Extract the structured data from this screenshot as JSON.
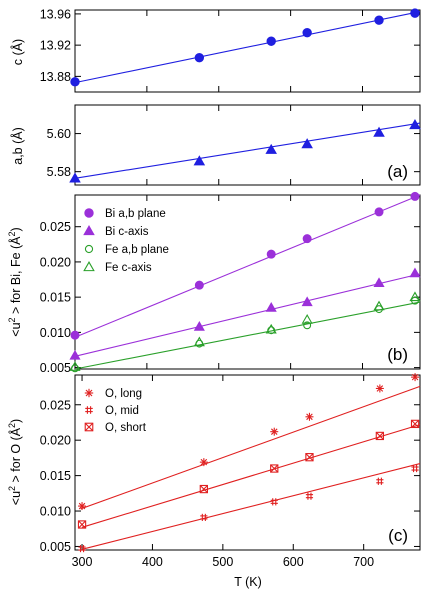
{
  "chart_data": [
    {
      "type": "scatter",
      "panel": "c-lattice",
      "ylabel": "c (Å)",
      "xlim": [
        300,
        780
      ],
      "ylim": [
        13.86,
        13.965
      ],
      "yticks": [
        "13.88",
        "13.92",
        "13.96"
      ],
      "series": [
        {
          "color": "#1f1fe0",
          "marker": "circle-filled",
          "x": [
            300,
            473,
            573,
            623,
            723,
            773
          ],
          "y": [
            13.873,
            13.904,
            13.925,
            13.936,
            13.952,
            13.961
          ],
          "fit": [
            [
              300,
              13.872
            ],
            [
              780,
              13.963
            ]
          ]
        }
      ]
    },
    {
      "type": "scatter",
      "panel": "ab-lattice",
      "ylabel": "a,b (Å)",
      "panel_label": "(a)",
      "xlim": [
        300,
        780
      ],
      "ylim": [
        5.573,
        5.615
      ],
      "yticks": [
        "5.58",
        "5.60"
      ],
      "series": [
        {
          "color": "#1f1fe0",
          "marker": "triangle-filled",
          "x": [
            300,
            473,
            573,
            623,
            723,
            773
          ],
          "y": [
            5.5765,
            5.5855,
            5.5915,
            5.5945,
            5.6005,
            5.6045
          ],
          "fit": [
            [
              300,
              5.5765
            ],
            [
              780,
              5.6055
            ]
          ]
        }
      ]
    },
    {
      "type": "scatter",
      "panel": "b",
      "ylabel": "<u2 > for Bi, Fe (Å2)",
      "panel_label": "(b)",
      "xlim": [
        300,
        780
      ],
      "ylim": [
        0.0048,
        0.0295
      ],
      "yticks": [
        "0.005",
        "0.010",
        "0.015",
        "0.020",
        "0.025"
      ],
      "legend": [
        {
          "label": "Bi a,b plane",
          "marker": "circle-filled",
          "color": "#9b30d9"
        },
        {
          "label": "Bi c-axis",
          "marker": "triangle-filled",
          "color": "#9b30d9"
        },
        {
          "label": "Fe a,b plane",
          "marker": "circle-open",
          "color": "#2aa02a"
        },
        {
          "label": "Fe c-axis",
          "marker": "triangle-open",
          "color": "#2aa02a"
        }
      ],
      "series": [
        {
          "name": "Bi a,b plane",
          "color": "#9b30d9",
          "marker": "circle-filled",
          "x": [
            300,
            473,
            573,
            623,
            723,
            773
          ],
          "y": [
            0.0096,
            0.0167,
            0.0211,
            0.0233,
            0.0271,
            0.0293
          ],
          "fit": [
            [
              300,
              0.0093
            ],
            [
              780,
              0.0295
            ]
          ]
        },
        {
          "name": "Bi c-axis",
          "color": "#9b30d9",
          "marker": "triangle-filled",
          "x": [
            300,
            473,
            573,
            623,
            723,
            773
          ],
          "y": [
            0.0067,
            0.0108,
            0.0135,
            0.0143,
            0.017,
            0.0184
          ],
          "fit": [
            [
              300,
              0.0066
            ],
            [
              780,
              0.0183
            ]
          ]
        },
        {
          "name": "Fe a,b plane",
          "color": "#2aa02a",
          "marker": "circle-open",
          "x": [
            300,
            473,
            573,
            623,
            723,
            773
          ],
          "y": [
            0.0049,
            0.0084,
            0.0103,
            0.011,
            0.0133,
            0.0145
          ],
          "fit": [
            [
              300,
              0.0048
            ],
            [
              780,
              0.0143
            ]
          ]
        },
        {
          "name": "Fe c-axis",
          "color": "#2aa02a",
          "marker": "triangle-open",
          "x": [
            300,
            473,
            573,
            623,
            723,
            773
          ],
          "y": [
            0.0051,
            0.0086,
            0.0104,
            0.0118,
            0.0137,
            0.015
          ],
          "fit": null
        }
      ]
    },
    {
      "type": "scatter",
      "panel": "c",
      "ylabel": "<u2 > for O (Å2)",
      "panel_label": "(c)",
      "xlabel": "T (K)",
      "xlim": [
        290,
        780
      ],
      "ylim": [
        0.0045,
        0.0292
      ],
      "xticks": [
        "300",
        "400",
        "500",
        "600",
        "700"
      ],
      "yticks": [
        "0.005",
        "0.010",
        "0.015",
        "0.020",
        "0.025"
      ],
      "legend": [
        {
          "label": "O, long",
          "marker": "asterisk",
          "color": "#e02020"
        },
        {
          "label": "O, mid",
          "marker": "hash",
          "color": "#e02020"
        },
        {
          "label": "O, short",
          "marker": "boxed-x",
          "color": "#e02020"
        }
      ],
      "series": [
        {
          "name": "O, long",
          "color": "#e02020",
          "marker": "asterisk",
          "x": [
            300,
            473,
            573,
            623,
            723,
            773
          ],
          "y": [
            0.0107,
            0.0169,
            0.0212,
            0.0233,
            0.0273,
            0.0289
          ],
          "fit": [
            [
              298,
              0.0103
            ],
            [
              780,
              0.0276
            ]
          ]
        },
        {
          "name": "O, mid",
          "color": "#e02020",
          "marker": "hash",
          "x": [
            300,
            473,
            573,
            623,
            723,
            773
          ],
          "y": [
            0.0047,
            0.0091,
            0.0113,
            0.0121,
            0.0142,
            0.016
          ],
          "fit": [
            [
              300,
              0.0046
            ],
            [
              780,
              0.0167
            ]
          ]
        },
        {
          "name": "O, short",
          "color": "#e02020",
          "marker": "boxed-x",
          "x": [
            300,
            473,
            573,
            623,
            723,
            773
          ],
          "y": [
            0.0081,
            0.0131,
            0.016,
            0.0176,
            0.0206,
            0.0223
          ],
          "fit": [
            [
              300,
              0.0077
            ],
            [
              780,
              0.0222
            ]
          ]
        }
      ]
    }
  ]
}
